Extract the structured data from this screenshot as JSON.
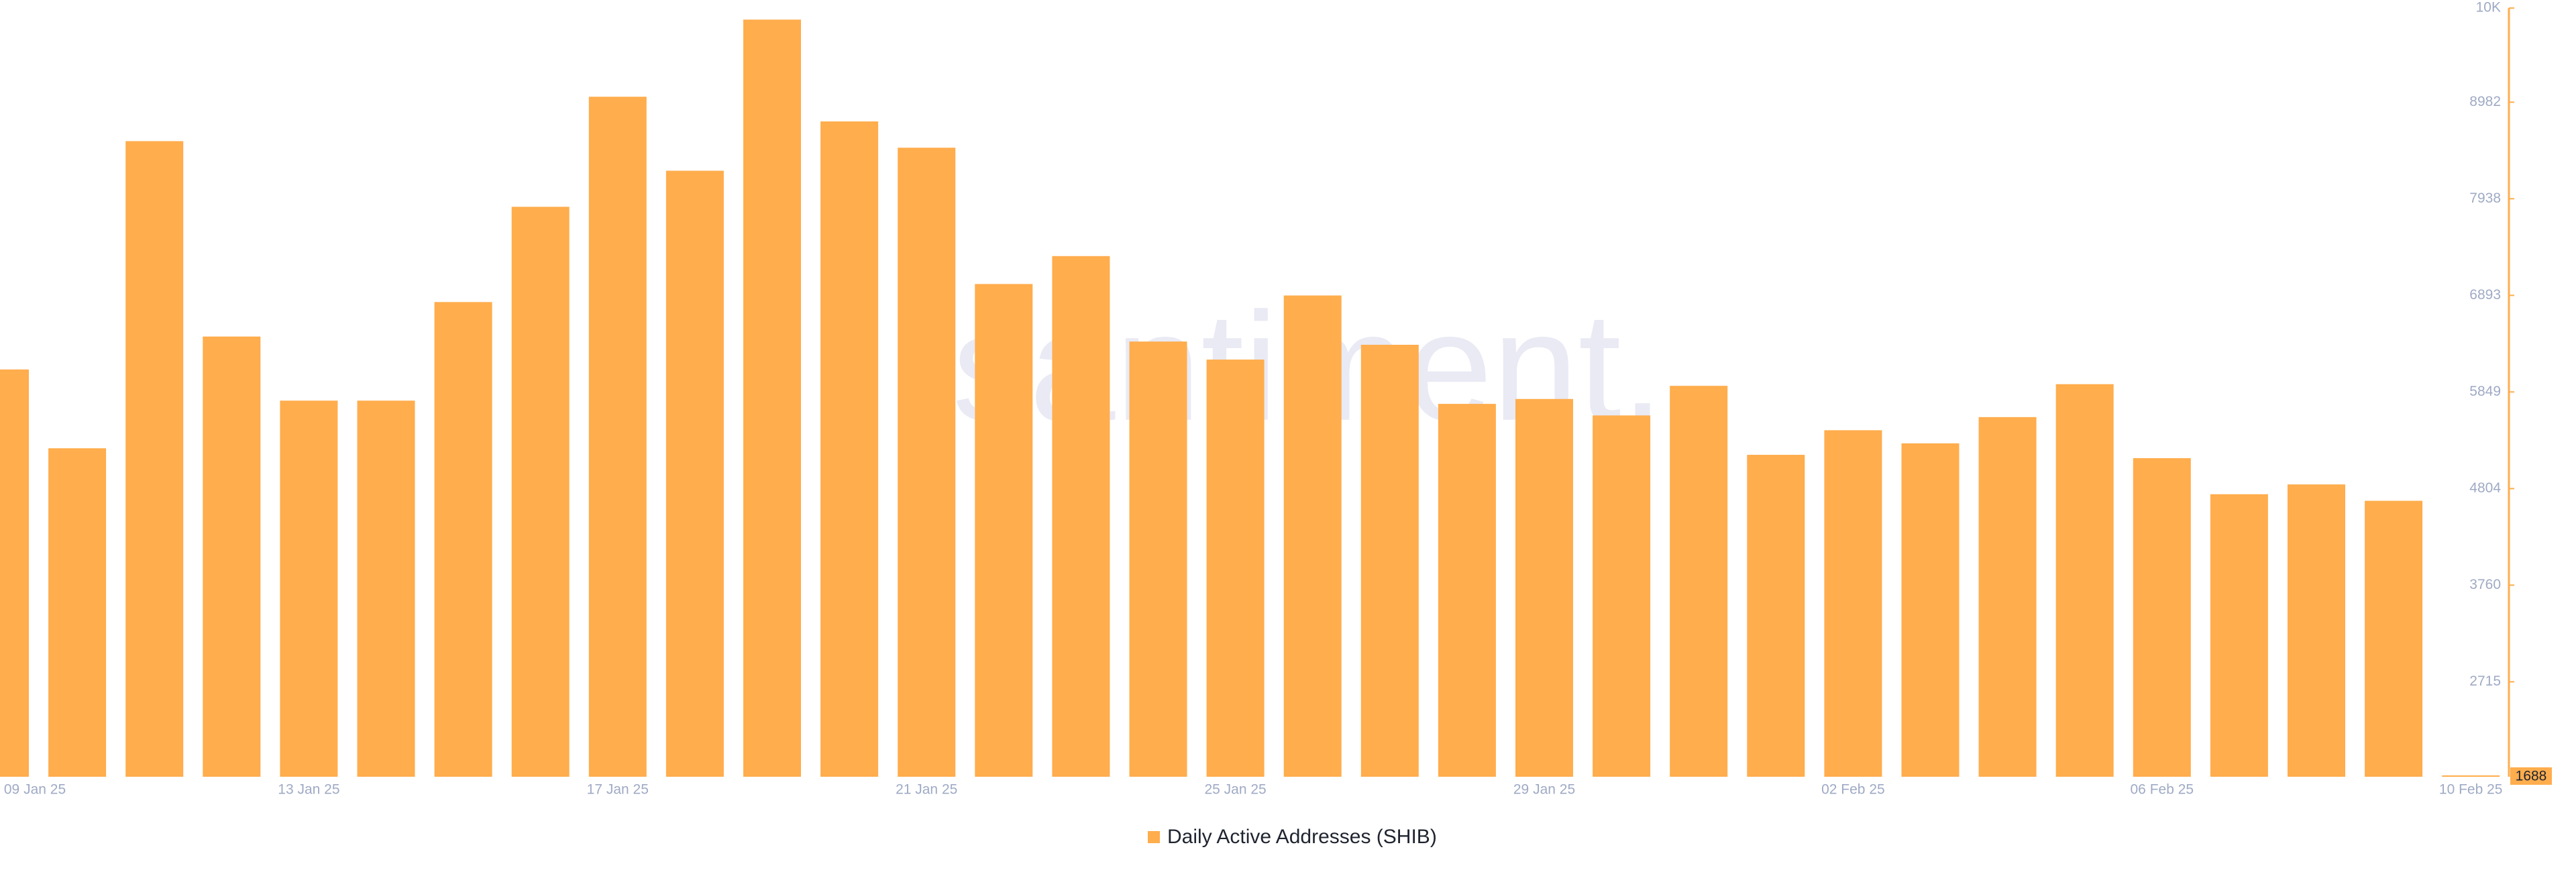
{
  "chart_data": {
    "type": "bar",
    "watermark": "santiment.",
    "categories": [
      "09 Jan 25",
      null,
      null,
      null,
      "13 Jan 25",
      null,
      null,
      null,
      "17 Jan 25",
      null,
      null,
      null,
      "21 Jan 25",
      null,
      null,
      null,
      "25 Jan 25",
      null,
      null,
      null,
      "29 Jan 25",
      null,
      null,
      null,
      "02 Feb 25",
      null,
      null,
      null,
      "06 Feb 25",
      null,
      null,
      null,
      "10 Feb 25"
    ],
    "series": [
      {
        "name": "Daily Active Addresses (SHIB)",
        "color": "#ffad4d",
        "values": [
          6092,
          5240,
          8561,
          6448,
          5755,
          5755,
          6821,
          7851,
          9041,
          8241,
          9875,
          8774,
          8490,
          7016,
          7318,
          6394,
          6199,
          6892,
          6359,
          5720,
          5773,
          5595,
          5915,
          5169,
          5435,
          5293,
          5577,
          5933,
          5133,
          4743,
          4849,
          4672,
          1688
        ]
      }
    ],
    "ylim": [
      1688,
      10000
    ],
    "yticks": [
      2715,
      3760,
      4804,
      5849,
      6893,
      7938,
      8982,
      {
        "value": 10000,
        "label": "10K"
      }
    ],
    "axis_side": "right",
    "grid": false
  }
}
